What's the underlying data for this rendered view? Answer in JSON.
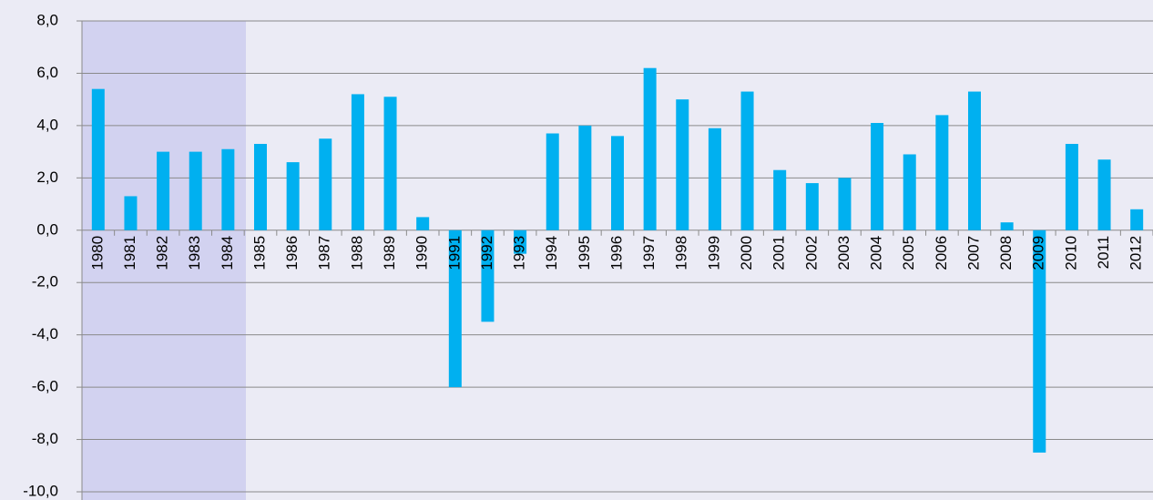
{
  "chart_data": {
    "type": "bar",
    "categories": [
      "1980",
      "1981",
      "1982",
      "1983",
      "1984",
      "1985",
      "1986",
      "1987",
      "1988",
      "1989",
      "1990",
      "1991",
      "1992",
      "1993",
      "1994",
      "1995",
      "1996",
      "1997",
      "1998",
      "1999",
      "2000",
      "2001",
      "2002",
      "2003",
      "2004",
      "2005",
      "2006",
      "2007",
      "2008",
      "2009",
      "2010",
      "2011",
      "2012"
    ],
    "values": [
      5.4,
      1.3,
      3.0,
      3.0,
      3.1,
      3.3,
      2.6,
      3.5,
      5.2,
      5.1,
      0.5,
      -6.0,
      -3.5,
      -0.9,
      3.7,
      4.0,
      3.6,
      6.2,
      5.0,
      3.9,
      5.3,
      2.3,
      1.8,
      2.0,
      4.1,
      2.9,
      4.4,
      5.3,
      0.3,
      -8.5,
      3.3,
      2.7,
      0.8
    ],
    "color": "#00b0f0",
    "ylim": [
      -10,
      8
    ],
    "yticks": [
      {
        "value": -10,
        "label": "-10,0"
      },
      {
        "value": -8,
        "label": "-8,0"
      },
      {
        "value": -6,
        "label": "-6,0"
      },
      {
        "value": -4,
        "label": "-4,0"
      },
      {
        "value": -2,
        "label": "-2,0"
      },
      {
        "value": 0,
        "label": "0,0"
      },
      {
        "value": 2,
        "label": "2,0"
      },
      {
        "value": 4,
        "label": "4,0"
      },
      {
        "value": 6,
        "label": "6,0"
      },
      {
        "value": 8,
        "label": "8,0"
      }
    ],
    "grid": true
  }
}
